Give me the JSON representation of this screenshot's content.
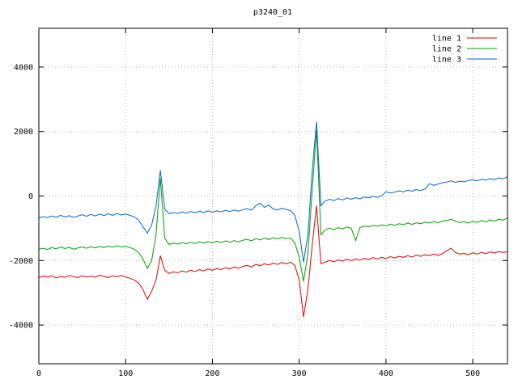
{
  "title": "p3240_01",
  "chart_data": {
    "type": "line",
    "title": "p3240_01",
    "xlabel": "",
    "ylabel": "",
    "xlim": [
      0,
      540
    ],
    "ylim": [
      -5200,
      5200
    ],
    "x_ticks": [
      0,
      100,
      200,
      300,
      400,
      500
    ],
    "y_ticks": [
      -4000,
      -2000,
      0,
      2000,
      4000
    ],
    "grid": true,
    "grid_style": "dotted",
    "legend_position": "top-right",
    "x_start": 0,
    "x_step": 5,
    "series": [
      {
        "name": "line 1",
        "color": "#dd0000",
        "values": [
          -2520,
          -2480,
          -2510,
          -2470,
          -2540,
          -2490,
          -2520,
          -2460,
          -2500,
          -2530,
          -2470,
          -2510,
          -2480,
          -2520,
          -2450,
          -2490,
          -2530,
          -2470,
          -2500,
          -2460,
          -2510,
          -2550,
          -2600,
          -2700,
          -2900,
          -3200,
          -2950,
          -2600,
          -1850,
          -2300,
          -2400,
          -2350,
          -2380,
          -2320,
          -2360,
          -2300,
          -2340,
          -2280,
          -2320,
          -2260,
          -2300,
          -2250,
          -2280,
          -2220,
          -2260,
          -2200,
          -2240,
          -2180,
          -2150,
          -2200,
          -2120,
          -2160,
          -2100,
          -2140,
          -2080,
          -2120,
          -2060,
          -2100,
          -2050,
          -2150,
          -2600,
          -3750,
          -2900,
          -1500,
          -300,
          -2100,
          -2050,
          -2000,
          -2040,
          -1980,
          -2020,
          -1960,
          -2000,
          -1950,
          -1990,
          -1930,
          -1970,
          -1910,
          -1950,
          -1900,
          -1940,
          -1880,
          -1920,
          -1870,
          -1900,
          -1850,
          -1890,
          -1830,
          -1870,
          -1820,
          -1850,
          -1800,
          -1840,
          -1790,
          -1700,
          -1620,
          -1750,
          -1800,
          -1780,
          -1820,
          -1760,
          -1800,
          -1750,
          -1790,
          -1730,
          -1770,
          -1720,
          -1750,
          -1730
        ]
      },
      {
        "name": "line 2",
        "color": "#00a000",
        "values": [
          -1650,
          -1620,
          -1660,
          -1600,
          -1640,
          -1580,
          -1630,
          -1590,
          -1650,
          -1610,
          -1580,
          -1620,
          -1570,
          -1610,
          -1560,
          -1600,
          -1550,
          -1590,
          -1540,
          -1580,
          -1560,
          -1600,
          -1650,
          -1750,
          -1950,
          -2250,
          -2000,
          -1200,
          550,
          -1300,
          -1500,
          -1460,
          -1490,
          -1440,
          -1480,
          -1430,
          -1470,
          -1420,
          -1460,
          -1410,
          -1450,
          -1400,
          -1440,
          -1390,
          -1430,
          -1380,
          -1420,
          -1370,
          -1340,
          -1390,
          -1320,
          -1360,
          -1300,
          -1350,
          -1290,
          -1330,
          -1280,
          -1320,
          -1300,
          -1450,
          -1900,
          -2650,
          -1800,
          200,
          2050,
          -1200,
          -1050,
          -1000,
          -1040,
          -980,
          -1020,
          -960,
          -1000,
          -1380,
          -980,
          -930,
          -960,
          -910,
          -940,
          -890,
          -930,
          -870,
          -910,
          -860,
          -890,
          -840,
          -880,
          -830,
          -860,
          -810,
          -840,
          -790,
          -830,
          -780,
          -760,
          -720,
          -780,
          -820,
          -800,
          -840,
          -780,
          -820,
          -760,
          -800,
          -740,
          -780,
          -720,
          -750,
          -680
        ]
      },
      {
        "name": "line 3",
        "color": "#0066cc",
        "values": [
          -680,
          -640,
          -670,
          -620,
          -660,
          -600,
          -650,
          -610,
          -660,
          -620,
          -580,
          -630,
          -570,
          -620,
          -560,
          -610,
          -550,
          -600,
          -540,
          -590,
          -560,
          -600,
          -650,
          -750,
          -950,
          -1150,
          -900,
          -300,
          800,
          -400,
          -550,
          -510,
          -540,
          -490,
          -530,
          -480,
          -520,
          -470,
          -510,
          -460,
          -500,
          -460,
          -490,
          -440,
          -480,
          -430,
          -470,
          -420,
          -390,
          -440,
          -300,
          -220,
          -350,
          -280,
          -400,
          -430,
          -380,
          -420,
          -450,
          -600,
          -1100,
          -2050,
          -1200,
          800,
          2300,
          -300,
          -150,
          -100,
          -140,
          -80,
          -120,
          -60,
          -100,
          -50,
          -90,
          -30,
          -60,
          -10,
          -40,
          10,
          130,
          90,
          120,
          160,
          130,
          180,
          150,
          200,
          170,
          220,
          380,
          330,
          370,
          410,
          430,
          470,
          420,
          460,
          440,
          480,
          500,
          470,
          520,
          490,
          540,
          510,
          560,
          530,
          600
        ]
      }
    ]
  }
}
